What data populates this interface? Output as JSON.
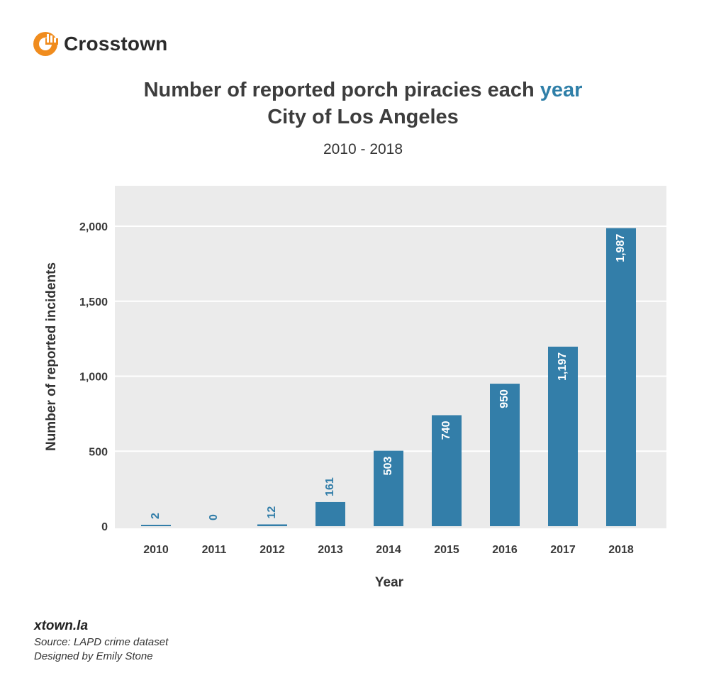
{
  "brand": {
    "name": "Crosstown",
    "logo_icon": "crosstown-logo-icon",
    "logo_color": "#f08c1e"
  },
  "title": {
    "prefix": "Number of reported porch piracies each ",
    "accent": "year",
    "line2": "City of Los Angeles",
    "accent_color": "#2f7fa8"
  },
  "subtitle": "2010 - 2018",
  "footer": {
    "site": "xtown.la",
    "source": "Source: LAPD crime dataset",
    "credit": "Designed by Emily Stone"
  },
  "chart_data": {
    "type": "bar",
    "categories": [
      "2010",
      "2011",
      "2012",
      "2013",
      "2014",
      "2015",
      "2016",
      "2017",
      "2018"
    ],
    "values": [
      2,
      0,
      12,
      161,
      503,
      740,
      950,
      1197,
      1987
    ],
    "value_labels": [
      "2",
      "0",
      "12",
      "161",
      "503",
      "740",
      "950",
      "1,197",
      "1,987"
    ],
    "xlabel": "Year",
    "ylabel": "Number of reported incidents",
    "ylim": [
      0,
      2250
    ],
    "yticks": [
      0,
      500,
      1000,
      1500,
      2000
    ],
    "ytick_labels": [
      "0",
      "500",
      "1,000",
      "1,500",
      "2,000"
    ],
    "grid": true,
    "bar_color": "#337ea9",
    "panel_color": "#ebebeb"
  }
}
